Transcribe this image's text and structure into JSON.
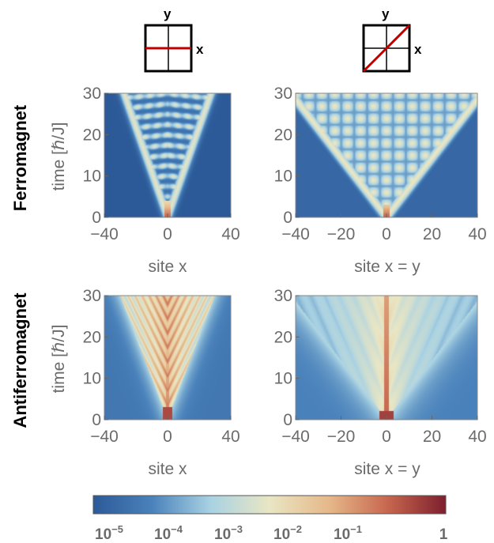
{
  "chart_data": [
    {
      "type": "heatmap",
      "row_label": "Ferromagnet",
      "column_direction": "x",
      "xlabel": "site x",
      "ylabel": "time [ℏ/J]",
      "x_ticks": [
        "−40",
        "0",
        "40"
      ],
      "y_ticks": [
        "0",
        "10",
        "20",
        "30"
      ],
      "xlim": [
        -40,
        40
      ],
      "ylim": [
        0,
        30
      ],
      "light_cone_velocity": 1.0,
      "oscillation_period": 2.5
    },
    {
      "type": "heatmap",
      "row_label": "Ferromagnet",
      "column_direction": "x = y",
      "xlabel": "site x = y",
      "ylabel": "",
      "x_ticks": [
        "−40",
        "−20",
        "0",
        "20",
        "40"
      ],
      "y_ticks": [
        "0",
        "10",
        "20",
        "30"
      ],
      "xlim": [
        -40,
        40
      ],
      "ylim": [
        0,
        30
      ],
      "light_cone_velocity": 1.4
    },
    {
      "type": "heatmap",
      "row_label": "Antiferromagnet",
      "column_direction": "x",
      "xlabel": "site x",
      "ylabel": "time [ℏ/J]",
      "x_ticks": [
        "−40",
        "0",
        "40"
      ],
      "y_ticks": [
        "0",
        "10",
        "20",
        "30"
      ],
      "xlim": [
        -40,
        40
      ],
      "ylim": [
        0,
        30
      ],
      "light_cone_velocity": 1.0,
      "center_line": true
    },
    {
      "type": "heatmap",
      "row_label": "Antiferromagnet",
      "column_direction": "x = y",
      "xlabel": "site x = y",
      "ylabel": "",
      "x_ticks": [
        "−40",
        "−20",
        "0",
        "20",
        "40"
      ],
      "y_ticks": [
        "0",
        "10",
        "20",
        "30"
      ],
      "xlim": [
        -40,
        40
      ],
      "ylim": [
        0,
        30
      ],
      "light_cone_velocity": 1.4,
      "center_line": true
    }
  ],
  "rows": {
    "top_label": "Ferromagnet",
    "bottom_label": "Antiferromagnet"
  },
  "axes": {
    "ylabel": "time [ℏ/J]",
    "xlabel_x": "site x",
    "xlabel_diag": "site x = y"
  },
  "icons": {
    "left_x": "x",
    "left_y": "y",
    "right_x": "x",
    "right_y": "y",
    "line_color": "#c00000"
  },
  "ticks": {
    "y": [
      "0",
      "10",
      "20",
      "30"
    ],
    "x_left": [
      "−40",
      "0",
      "40"
    ],
    "x_right": [
      "−40",
      "−20",
      "0",
      "20",
      "40"
    ]
  },
  "colorbar": {
    "scale": "log",
    "range": [
      1e-05,
      1
    ],
    "colors": [
      "#2c5a98",
      "#4a82bb",
      "#a9d2e3",
      "#e9e6c4",
      "#e6b98a",
      "#c8674f",
      "#7d1f2e"
    ],
    "tick_labels": [
      {
        "base": "10",
        "exp": "−5"
      },
      {
        "base": "10",
        "exp": "−4"
      },
      {
        "base": "10",
        "exp": "−3"
      },
      {
        "base": "10",
        "exp": "−2"
      },
      {
        "base": "10",
        "exp": "−1"
      },
      {
        "base": "1",
        "exp": ""
      }
    ]
  }
}
